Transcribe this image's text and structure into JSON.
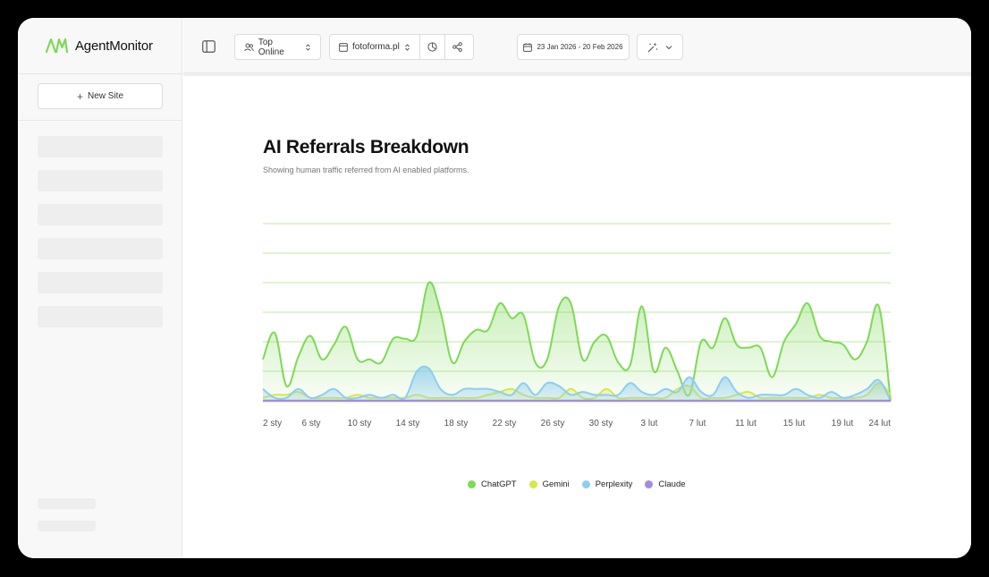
{
  "app": {
    "name": "AgentMonitor"
  },
  "sidebar": {
    "new_site_label": "New Site"
  },
  "toolbar": {
    "segment_label": "Top Online",
    "site_label": "fotoforma.pl",
    "date_range": "23 Jan 2026 - 20 Feb 2026"
  },
  "page": {
    "title": "AI Referrals Breakdown",
    "subtitle": "Showing human traffic referred from AI enabled platforms."
  },
  "colors": {
    "chatgpt": "#7ed957",
    "gemini": "#d4e84a",
    "perplexity": "#8ecdf0",
    "claude": "#a08ce0",
    "accent": "#7ed957"
  },
  "chart_data": {
    "type": "area",
    "x_ticks": [
      "2 sty",
      "6 sty",
      "10 sty",
      "14 sty",
      "18 sty",
      "22 sty",
      "26 sty",
      "30 sty",
      "3 lut",
      "7 lut",
      "11 lut",
      "15 lut",
      "19 lut",
      "24 lut"
    ],
    "ylim": [
      0,
      60
    ],
    "grid": true,
    "legend_position": "bottom",
    "x_count": 54,
    "series": [
      {
        "name": "ChatGPT",
        "color": "#7ed957",
        "values": [
          14,
          23,
          5,
          15,
          22,
          14,
          19,
          25,
          14,
          14,
          13,
          21,
          21,
          22,
          40,
          30,
          13,
          20,
          24,
          24,
          33,
          28,
          29,
          13,
          14,
          32,
          33,
          14,
          20,
          22,
          13,
          12,
          32,
          10,
          18,
          10,
          2,
          20,
          18,
          28,
          19,
          18,
          18,
          8,
          20,
          26,
          33,
          22,
          20,
          19,
          14,
          20,
          32,
          0
        ]
      },
      {
        "name": "Gemini",
        "color": "#d4e84a",
        "values": [
          1,
          2,
          2,
          3,
          1,
          1,
          1,
          1,
          2,
          1,
          1,
          1,
          1,
          2,
          1,
          1,
          1,
          1,
          1,
          2,
          3,
          4,
          2,
          1,
          1,
          1,
          4,
          1,
          1,
          4,
          1,
          1,
          1,
          1,
          1,
          4,
          5,
          1,
          1,
          1,
          2,
          3,
          1,
          1,
          1,
          1,
          1,
          2,
          1,
          1,
          1,
          2,
          6,
          2
        ]
      },
      {
        "name": "Perplexity",
        "color": "#8ecdf0",
        "values": [
          4,
          1,
          1,
          4,
          1,
          2,
          4,
          1,
          1,
          2,
          1,
          2,
          1,
          10,
          11,
          4,
          2,
          4,
          4,
          4,
          3,
          2,
          6,
          2,
          6,
          5,
          2,
          3,
          2,
          2,
          2,
          6,
          3,
          2,
          4,
          3,
          8,
          3,
          2,
          8,
          3,
          1,
          2,
          2,
          2,
          4,
          2,
          1,
          3,
          1,
          2,
          4,
          7,
          0
        ]
      },
      {
        "name": "Claude",
        "color": "#a08ce0",
        "values": [
          0,
          0,
          0,
          0,
          0,
          0,
          0,
          0,
          0,
          0,
          0,
          0,
          0,
          0,
          0,
          0,
          0,
          0,
          0,
          0,
          0,
          0,
          0,
          0,
          0,
          0,
          0,
          0,
          0,
          0,
          0,
          0,
          0,
          0,
          0,
          0,
          0,
          0,
          0,
          0,
          0,
          0,
          0,
          0,
          0,
          0,
          0,
          0,
          0,
          0,
          0,
          0,
          0,
          0
        ]
      }
    ]
  }
}
